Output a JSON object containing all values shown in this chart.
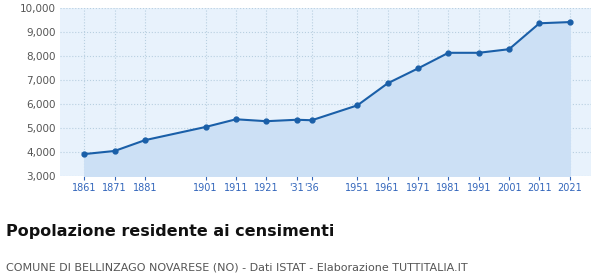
{
  "years": [
    1861,
    1871,
    1881,
    1901,
    1911,
    1921,
    1931,
    1936,
    1951,
    1961,
    1971,
    1981,
    1991,
    2001,
    2011,
    2021
  ],
  "population": [
    3930,
    4060,
    4510,
    5060,
    5380,
    5300,
    5360,
    5340,
    5960,
    6880,
    7500,
    8150,
    8150,
    8300,
    9380,
    9430
  ],
  "line_color": "#1a5fa8",
  "fill_color": "#cce0f5",
  "marker_color": "#1a5fa8",
  "background_color": "#e8f2fc",
  "grid_color": "#b8cfe0",
  "title": "Popolazione residente ai censimenti",
  "subtitle": "COMUNE DI BELLINZAGO NOVARESE (NO) - Dati ISTAT - Elaborazione TUTTITALIA.IT",
  "title_fontsize": 11.5,
  "subtitle_fontsize": 8,
  "title_color": "#111111",
  "subtitle_color": "#555555",
  "tick_color": "#3366bb",
  "ytick_color": "#555555",
  "ylim": [
    3000,
    10000
  ],
  "yticks": [
    3000,
    4000,
    5000,
    6000,
    7000,
    8000,
    9000,
    10000
  ]
}
